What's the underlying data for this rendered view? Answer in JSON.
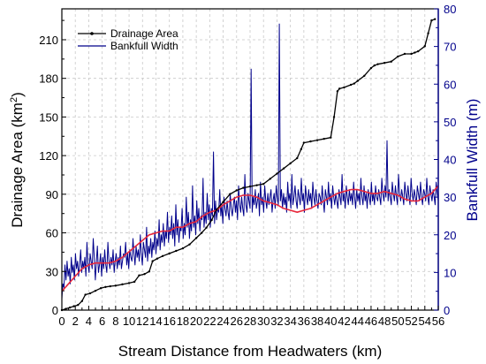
{
  "chart_data": {
    "type": "line",
    "title": "",
    "xlabel": "Stream Distance from Headwaters (km)",
    "ylabel": "Drainage Area (km",
    "ylabel_sup": "2",
    "ylabel_suffix": ")",
    "y2label": "Bankfull Width (m)",
    "xlim": [
      0,
      56
    ],
    "ylim": [
      0,
      234
    ],
    "y2lim": [
      0,
      80
    ],
    "xticks": [
      0,
      2,
      4,
      6,
      8,
      10,
      12,
      14,
      16,
      18,
      20,
      22,
      24,
      26,
      28,
      30,
      32,
      34,
      36,
      38,
      40,
      42,
      44,
      46,
      48,
      50,
      52,
      54,
      56
    ],
    "yticks": [
      0,
      30,
      60,
      90,
      120,
      150,
      180,
      210
    ],
    "y2ticks": [
      0,
      10,
      20,
      30,
      40,
      50,
      60,
      70,
      80
    ],
    "grid": true,
    "legend_position": "top-left",
    "colors": {
      "drainage": "#000000",
      "width": "#00008B",
      "trend": "#E8283C",
      "axis_right": "#00008B"
    },
    "series": [
      {
        "name": "Drainage Area",
        "axis": "left",
        "x": [
          0,
          0.6,
          1.2,
          1.8,
          2.4,
          3.0,
          3.5,
          4.2,
          5.0,
          5.8,
          6.5,
          7.2,
          8.0,
          9.0,
          10.0,
          10.8,
          11.5,
          12.3,
          13.0,
          13.5,
          14.2,
          15.0,
          16.0,
          17.0,
          18.0,
          19.0,
          20.0,
          20.8,
          21.5,
          22.3,
          23.0,
          24.0,
          25.0,
          26.0,
          27.0,
          28.0,
          29.0,
          30.0,
          31.0,
          32.0,
          33.0,
          34.0,
          35.0,
          35.6,
          36.0,
          37.0,
          38.0,
          39.0,
          40.0,
          40.5,
          41.0,
          41.3,
          42.0,
          43.0,
          43.5,
          44.0,
          45.0,
          46.0,
          46.5,
          47.0,
          48.0,
          49.0,
          50.0,
          51.0,
          52.0,
          52.5,
          53.0,
          54.0,
          54.5,
          55.0,
          55.5
        ],
        "values": [
          0,
          1,
          2,
          3,
          4,
          7,
          12,
          13,
          15,
          17,
          18,
          18.5,
          19,
          20,
          21,
          22,
          27,
          28,
          30,
          38,
          40,
          42,
          44,
          46,
          48,
          51,
          56,
          60,
          64,
          70,
          78,
          84,
          90,
          93,
          95,
          96,
          97,
          98,
          102,
          106,
          110,
          114,
          118,
          125,
          130,
          131,
          132,
          133,
          134,
          150,
          170,
          172,
          173,
          175,
          176,
          178,
          182,
          188,
          190,
          191,
          192,
          193,
          197,
          199,
          199,
          200,
          201,
          205,
          215,
          225,
          226
        ]
      },
      {
        "name": "Bankfull Width",
        "axis": "right",
        "x_range": [
          0,
          56
        ],
        "values": [
          3,
          7,
          6,
          12,
          8,
          13,
          9,
          11,
          7,
          14,
          10,
          12,
          8,
          15,
          11,
          13,
          9,
          12,
          16,
          10,
          13,
          11,
          14,
          9,
          18,
          12,
          10,
          15,
          13,
          11,
          19,
          14,
          8,
          13,
          17,
          10,
          12,
          15,
          9,
          14,
          11,
          16,
          12,
          10,
          18,
          13,
          11,
          14,
          12,
          16,
          10,
          13,
          15,
          11,
          14,
          12,
          17,
          11,
          13,
          15,
          14,
          18,
          12,
          15,
          11,
          16,
          14,
          13,
          19,
          15,
          12,
          17,
          14,
          16,
          13,
          20,
          15,
          12,
          18,
          16,
          14,
          22,
          13,
          17,
          15,
          19,
          14,
          18,
          16,
          21,
          15,
          19,
          17,
          24,
          16,
          20,
          18,
          23,
          17,
          21,
          19,
          26,
          18,
          22,
          20,
          25,
          19,
          23,
          17,
          28,
          20,
          24,
          18,
          22,
          21,
          27,
          19,
          23,
          20,
          30,
          22,
          26,
          19,
          24,
          21,
          33,
          22,
          25,
          20,
          29,
          23,
          27,
          21,
          25,
          24,
          35,
          22,
          26,
          23,
          31,
          24,
          28,
          22,
          27,
          25,
          42,
          23,
          29,
          24,
          27,
          26,
          32,
          25,
          28,
          23,
          30,
          27,
          25,
          29,
          26,
          24,
          31,
          27,
          25,
          28,
          30,
          26,
          29,
          24,
          33,
          28,
          26,
          30,
          27,
          25,
          36,
          28,
          26,
          31,
          29,
          27,
          64,
          26,
          30,
          28,
          32,
          27,
          29,
          31,
          25,
          34,
          28,
          30,
          26,
          33,
          29,
          27,
          31,
          28,
          30,
          32,
          26,
          29,
          31,
          27,
          33,
          30,
          28,
          76,
          29,
          32,
          27,
          31,
          28,
          30,
          26,
          34,
          29,
          31,
          27,
          36,
          28,
          30,
          33,
          29,
          27,
          32,
          30,
          28,
          35,
          29,
          31,
          26,
          33,
          30,
          28,
          32,
          29,
          31,
          27,
          34,
          30,
          28,
          32,
          29,
          27,
          31,
          30,
          28,
          33,
          29,
          26,
          32,
          30,
          28,
          34,
          29,
          31,
          27,
          33,
          30,
          28,
          31,
          29,
          27,
          32,
          30,
          28,
          36,
          29,
          31,
          27,
          33,
          30,
          28,
          32,
          29,
          31,
          28,
          34,
          30,
          27,
          32,
          29,
          31,
          28,
          35,
          30,
          28,
          33,
          29,
          31,
          27,
          32,
          30,
          28,
          34,
          29,
          31,
          28,
          33,
          30,
          29,
          32,
          30,
          28,
          35,
          31,
          29,
          33,
          30,
          45,
          29,
          32,
          30,
          28,
          34,
          31,
          29,
          33,
          30,
          28,
          36,
          31,
          29,
          32,
          30,
          28,
          34,
          31,
          29,
          33,
          30,
          28,
          35,
          31,
          29,
          32,
          30,
          28,
          33,
          31,
          29,
          34,
          30,
          28,
          32,
          31,
          29,
          35,
          30,
          28,
          33,
          31,
          29,
          32,
          30,
          28,
          34,
          31,
          29
        ]
      },
      {
        "name": "",
        "axis": "right",
        "x": [
          0,
          1,
          2,
          3,
          4,
          5,
          6,
          7,
          8,
          9,
          10,
          11,
          12,
          13,
          14,
          15,
          16,
          17,
          18,
          19,
          20,
          21,
          22,
          23,
          24,
          25,
          26,
          27,
          28,
          29,
          30,
          31,
          32,
          33,
          34,
          35,
          36,
          37,
          38,
          39,
          40,
          41,
          42,
          43,
          44,
          45,
          46,
          47,
          48,
          49,
          50,
          51,
          52,
          53,
          54,
          55,
          56
        ],
        "values": [
          5,
          7,
          9,
          11,
          12,
          12.5,
          12.5,
          12.5,
          13,
          14,
          15.5,
          17,
          18.5,
          20,
          20.5,
          21,
          21,
          22,
          22,
          23,
          23.5,
          25,
          26,
          26.5,
          28,
          29,
          30,
          30.5,
          30.5,
          30,
          29,
          28.5,
          28,
          27,
          26.5,
          26,
          26.5,
          27,
          28,
          29,
          30,
          31,
          31.5,
          32,
          32,
          31.5,
          31,
          31,
          31.5,
          31,
          30.5,
          29.5,
          29,
          29,
          30,
          31,
          33
        ]
      }
    ]
  }
}
